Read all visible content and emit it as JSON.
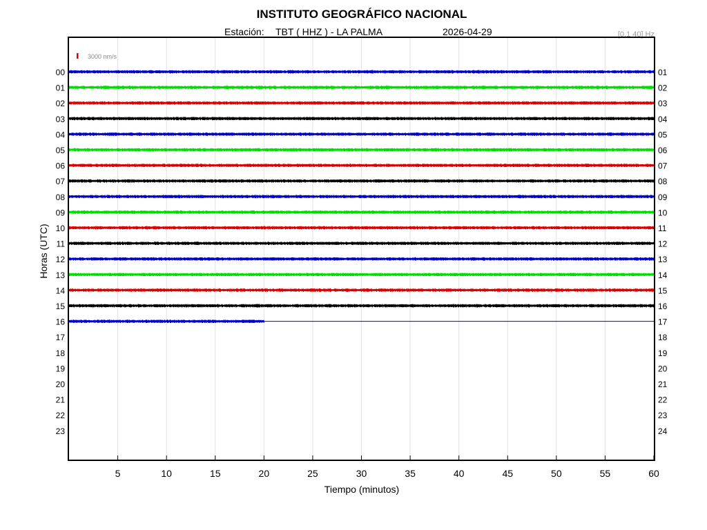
{
  "header": {
    "title": "INSTITUTO GEOGRÁFICO NACIONAL",
    "station_label": "Estación:",
    "station": "TBT ( HHZ ) - LA PALMA",
    "date": "2026-04-29",
    "filter": "[0.1 40] Hz"
  },
  "scale": {
    "label": "3000 nm/s",
    "color": "#dd0000"
  },
  "chart_data": {
    "type": "line",
    "xlabel": "Tiempo (minutos)",
    "ylabel": "Horas (UTC)",
    "xlim": [
      0,
      60
    ],
    "x_ticks": [
      "5",
      "10",
      "15",
      "20",
      "25",
      "30",
      "35",
      "40",
      "45",
      "50",
      "55",
      "60"
    ],
    "x_tick_values": [
      5,
      10,
      15,
      20,
      25,
      30,
      35,
      40,
      45,
      50,
      55,
      60
    ],
    "grid": "vertical",
    "left_hour_labels": [
      "00",
      "01",
      "02",
      "03",
      "04",
      "05",
      "06",
      "07",
      "08",
      "09",
      "10",
      "11",
      "12",
      "13",
      "14",
      "15",
      "16",
      "17",
      "18",
      "19",
      "20",
      "21",
      "22",
      "23"
    ],
    "right_hour_labels": [
      "01",
      "02",
      "03",
      "04",
      "05",
      "06",
      "07",
      "08",
      "09",
      "10",
      "11",
      "12",
      "13",
      "14",
      "15",
      "16",
      "17",
      "18",
      "19",
      "20",
      "21",
      "22",
      "23",
      "24"
    ],
    "trace_colors": [
      "#0000cc",
      "#00dd00",
      "#dd0000",
      "#000000"
    ],
    "series": [
      {
        "hour": 0,
        "color": "#0000cc",
        "end_minute": 60
      },
      {
        "hour": 1,
        "color": "#00dd00",
        "end_minute": 60
      },
      {
        "hour": 2,
        "color": "#dd0000",
        "end_minute": 60
      },
      {
        "hour": 3,
        "color": "#000000",
        "end_minute": 60
      },
      {
        "hour": 4,
        "color": "#0000cc",
        "end_minute": 60
      },
      {
        "hour": 5,
        "color": "#00dd00",
        "end_minute": 60
      },
      {
        "hour": 6,
        "color": "#dd0000",
        "end_minute": 60
      },
      {
        "hour": 7,
        "color": "#000000",
        "end_minute": 60
      },
      {
        "hour": 8,
        "color": "#0000cc",
        "end_minute": 60
      },
      {
        "hour": 9,
        "color": "#00dd00",
        "end_minute": 60
      },
      {
        "hour": 10,
        "color": "#dd0000",
        "end_minute": 60
      },
      {
        "hour": 11,
        "color": "#000000",
        "end_minute": 60
      },
      {
        "hour": 12,
        "color": "#0000cc",
        "end_minute": 60
      },
      {
        "hour": 13,
        "color": "#00dd00",
        "end_minute": 60
      },
      {
        "hour": 14,
        "color": "#dd0000",
        "end_minute": 60
      },
      {
        "hour": 15,
        "color": "#000000",
        "end_minute": 60
      },
      {
        "hour": 16,
        "color": "#0000cc",
        "end_minute": 20
      }
    ]
  }
}
